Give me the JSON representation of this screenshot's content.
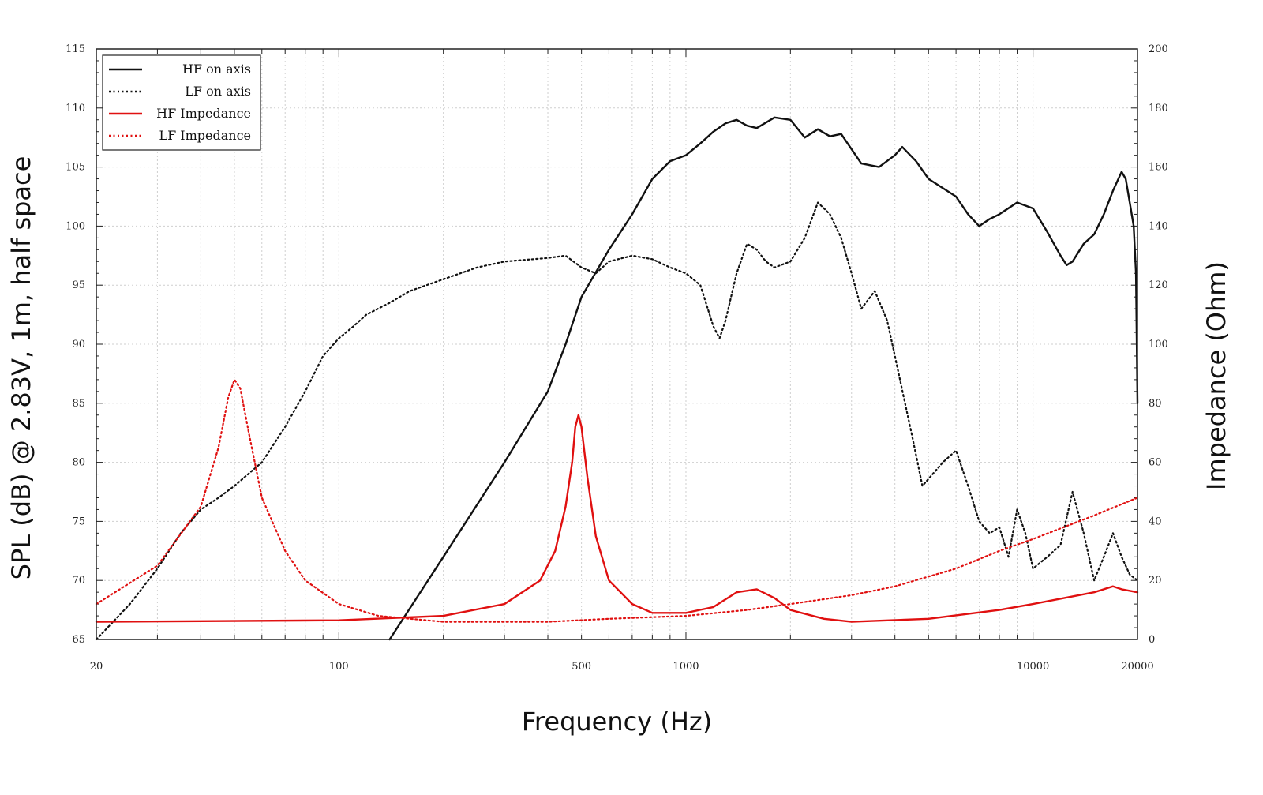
{
  "chart_data": {
    "type": "line",
    "title": "",
    "xlabel": "Frequency (Hz)",
    "ylabel": "SPL (dB) @ 2.83V, 1m, half space",
    "y2label": "Impedance (Ohm)",
    "xscale": "log",
    "xlim": [
      20,
      20000
    ],
    "ylim": [
      65,
      115
    ],
    "y2lim": [
      0,
      200
    ],
    "grid": true,
    "legend_position": "top-left",
    "x_tick_labels": [
      "20",
      "100",
      "500",
      "1000",
      "10000",
      "20000"
    ],
    "x_tick_values": [
      20,
      100,
      500,
      1000,
      10000,
      20000
    ],
    "y_tick_labels": [
      "65",
      "70",
      "75",
      "80",
      "85",
      "90",
      "95",
      "100",
      "105",
      "110",
      "115"
    ],
    "y2_tick_labels": [
      "0",
      "20",
      "40",
      "60",
      "80",
      "100",
      "120",
      "140",
      "160",
      "180",
      "200"
    ],
    "series": [
      {
        "name": "HF on axis",
        "axis": "left",
        "color": "#111111",
        "dash": "solid",
        "points": [
          [
            140,
            65
          ],
          [
            200,
            72
          ],
          [
            300,
            80
          ],
          [
            400,
            86
          ],
          [
            450,
            90
          ],
          [
            500,
            94
          ],
          [
            600,
            98
          ],
          [
            700,
            101
          ],
          [
            800,
            104
          ],
          [
            900,
            105.5
          ],
          [
            1000,
            106
          ],
          [
            1100,
            107
          ],
          [
            1200,
            108
          ],
          [
            1300,
            108.7
          ],
          [
            1400,
            109
          ],
          [
            1500,
            108.5
          ],
          [
            1600,
            108.3
          ],
          [
            1800,
            109.2
          ],
          [
            2000,
            109
          ],
          [
            2200,
            107.5
          ],
          [
            2400,
            108.2
          ],
          [
            2600,
            107.6
          ],
          [
            2800,
            107.8
          ],
          [
            3200,
            105.3
          ],
          [
            3600,
            105
          ],
          [
            4000,
            106
          ],
          [
            4200,
            106.7
          ],
          [
            4600,
            105.5
          ],
          [
            5000,
            104
          ],
          [
            6000,
            102.5
          ],
          [
            6500,
            101
          ],
          [
            7000,
            100
          ],
          [
            7500,
            100.6
          ],
          [
            8000,
            101
          ],
          [
            9000,
            102
          ],
          [
            10000,
            101.5
          ],
          [
            11000,
            99.5
          ],
          [
            12000,
            97.5
          ],
          [
            12500,
            96.7
          ],
          [
            13000,
            97
          ],
          [
            14000,
            98.5
          ],
          [
            15000,
            99.3
          ],
          [
            16000,
            101
          ],
          [
            17000,
            103
          ],
          [
            18000,
            104.6
          ],
          [
            18500,
            104
          ],
          [
            19000,
            102
          ],
          [
            19500,
            100
          ],
          [
            19800,
            96
          ],
          [
            20000,
            85
          ]
        ]
      },
      {
        "name": "LF on axis",
        "axis": "left",
        "color": "#111111",
        "dash": "dotted",
        "points": [
          [
            20,
            65
          ],
          [
            25,
            68
          ],
          [
            30,
            71
          ],
          [
            35,
            74
          ],
          [
            40,
            76
          ],
          [
            45,
            77
          ],
          [
            50,
            78
          ],
          [
            60,
            80
          ],
          [
            70,
            83
          ],
          [
            80,
            86
          ],
          [
            90,
            89
          ],
          [
            100,
            90.5
          ],
          [
            110,
            91.5
          ],
          [
            120,
            92.5
          ],
          [
            140,
            93.5
          ],
          [
            160,
            94.5
          ],
          [
            200,
            95.5
          ],
          [
            250,
            96.5
          ],
          [
            300,
            97
          ],
          [
            400,
            97.3
          ],
          [
            450,
            97.5
          ],
          [
            500,
            96.5
          ],
          [
            550,
            96
          ],
          [
            600,
            97
          ],
          [
            700,
            97.5
          ],
          [
            800,
            97.2
          ],
          [
            900,
            96.5
          ],
          [
            1000,
            96
          ],
          [
            1100,
            95
          ],
          [
            1200,
            91.5
          ],
          [
            1250,
            90.5
          ],
          [
            1300,
            92
          ],
          [
            1400,
            96
          ],
          [
            1500,
            98.5
          ],
          [
            1600,
            98
          ],
          [
            1700,
            97
          ],
          [
            1800,
            96.5
          ],
          [
            2000,
            97
          ],
          [
            2200,
            99
          ],
          [
            2400,
            102
          ],
          [
            2600,
            101
          ],
          [
            2800,
            99
          ],
          [
            3000,
            96
          ],
          [
            3200,
            93
          ],
          [
            3500,
            94.5
          ],
          [
            3800,
            92
          ],
          [
            4000,
            89
          ],
          [
            4500,
            82
          ],
          [
            4800,
            78
          ],
          [
            5500,
            80
          ],
          [
            6000,
            81
          ],
          [
            6500,
            78
          ],
          [
            7000,
            75
          ],
          [
            7500,
            74
          ],
          [
            8000,
            74.5
          ],
          [
            8500,
            72
          ],
          [
            9000,
            76
          ],
          [
            9500,
            74
          ],
          [
            10000,
            71
          ],
          [
            11000,
            72
          ],
          [
            12000,
            73
          ],
          [
            13000,
            77.5
          ],
          [
            14000,
            74
          ],
          [
            15000,
            70
          ],
          [
            16000,
            72
          ],
          [
            17000,
            74
          ],
          [
            18000,
            72
          ],
          [
            19000,
            70.5
          ],
          [
            20000,
            70
          ]
        ]
      },
      {
        "name": "HF Impedance",
        "axis": "right",
        "color": "#e01010",
        "dash": "solid",
        "points": [
          [
            20,
            6
          ],
          [
            100,
            6.5
          ],
          [
            200,
            8
          ],
          [
            300,
            12
          ],
          [
            380,
            20
          ],
          [
            420,
            30
          ],
          [
            450,
            45
          ],
          [
            470,
            60
          ],
          [
            480,
            72
          ],
          [
            490,
            76
          ],
          [
            500,
            72
          ],
          [
            520,
            55
          ],
          [
            550,
            35
          ],
          [
            600,
            20
          ],
          [
            700,
            12
          ],
          [
            800,
            9
          ],
          [
            1000,
            9
          ],
          [
            1200,
            11
          ],
          [
            1400,
            16
          ],
          [
            1600,
            17
          ],
          [
            1800,
            14
          ],
          [
            2000,
            10
          ],
          [
            2500,
            7
          ],
          [
            3000,
            6
          ],
          [
            5000,
            7
          ],
          [
            8000,
            10
          ],
          [
            10000,
            12
          ],
          [
            15000,
            16
          ],
          [
            17000,
            18
          ],
          [
            18000,
            17
          ],
          [
            20000,
            16
          ]
        ]
      },
      {
        "name": "LF Impedance",
        "axis": "right",
        "color": "#e01010",
        "dash": "dotted",
        "points": [
          [
            20,
            12
          ],
          [
            30,
            25
          ],
          [
            40,
            45
          ],
          [
            45,
            65
          ],
          [
            48,
            82
          ],
          [
            50,
            88
          ],
          [
            52,
            85
          ],
          [
            55,
            70
          ],
          [
            60,
            48
          ],
          [
            70,
            30
          ],
          [
            80,
            20
          ],
          [
            100,
            12
          ],
          [
            130,
            8
          ],
          [
            200,
            6
          ],
          [
            400,
            6
          ],
          [
            600,
            7
          ],
          [
            1000,
            8
          ],
          [
            1500,
            10
          ],
          [
            2000,
            12
          ],
          [
            3000,
            15
          ],
          [
            4000,
            18
          ],
          [
            6000,
            24
          ],
          [
            8000,
            30
          ],
          [
            10000,
            34
          ],
          [
            15000,
            42
          ],
          [
            20000,
            48
          ]
        ]
      }
    ]
  }
}
